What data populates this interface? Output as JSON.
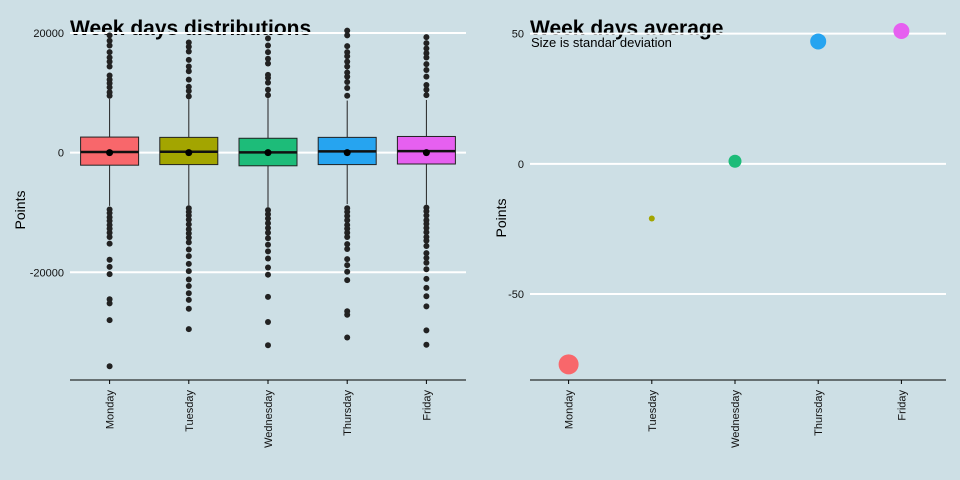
{
  "chart_data": [
    {
      "type": "boxplot",
      "title": "Week days distributions",
      "ylabel": "Points",
      "xlabel": "",
      "ylim": [
        -38000,
        22500
      ],
      "yticks": [
        20000,
        0,
        -20000
      ],
      "ytick_labels": [
        "20000",
        "0",
        "-20000"
      ],
      "grid": true,
      "legend": "none",
      "categories": [
        "Monday",
        "Tuesday",
        "Wednesday",
        "Thursday",
        "Friday"
      ],
      "colors": [
        "#f8676b",
        "#a3a500",
        "#1dbc79",
        "#26a4f0",
        "#e660f0"
      ],
      "boxes": [
        {
          "category": "Monday",
          "q1": -2100,
          "median": 100,
          "q3": 2600,
          "mean": 0,
          "whisker_low": -8900,
          "whisker_high": 9000,
          "outliers": [
            19600,
            18700,
            17900,
            16800,
            15900,
            15200,
            14400,
            12900,
            12200,
            11600,
            10900,
            10100,
            9500,
            -9500,
            -10100,
            -10800,
            -11400,
            -12100,
            -12700,
            -13400,
            -14100,
            -15200,
            -17900,
            -19100,
            -20300,
            -24500,
            -25200,
            -28000,
            -35700
          ]
        },
        {
          "category": "Tuesday",
          "q1": -2000,
          "median": 150,
          "q3": 2550,
          "mean": 0,
          "whisker_low": -8800,
          "whisker_high": 8900,
          "outliers": [
            18400,
            17700,
            16900,
            15500,
            14400,
            13600,
            12200,
            11000,
            10300,
            9400,
            -9300,
            -9900,
            -10500,
            -11200,
            -12000,
            -12800,
            -13500,
            -14200,
            -15000,
            -16200,
            -17300,
            -18600,
            -19800,
            -21200,
            -22300,
            -23500,
            -24600,
            -26100,
            -29500
          ]
        },
        {
          "category": "Wednesday",
          "q1": -2200,
          "median": 50,
          "q3": 2400,
          "mean": 0,
          "whisker_low": -9100,
          "whisker_high": 9100,
          "outliers": [
            19100,
            17900,
            16800,
            15700,
            14900,
            13000,
            12500,
            11700,
            10500,
            9600,
            -9600,
            -10300,
            -11000,
            -11800,
            -12600,
            -13400,
            -14300,
            -15400,
            -16500,
            -17700,
            -19200,
            -20400,
            -24100,
            -28300,
            -32200
          ]
        },
        {
          "category": "Thursday",
          "q1": -2000,
          "median": 200,
          "q3": 2550,
          "mean": 0,
          "whisker_low": -8600,
          "whisker_high": 8700,
          "outliers": [
            20400,
            19600,
            17800,
            16800,
            16100,
            15200,
            14400,
            13400,
            12700,
            11800,
            10800,
            9500,
            -9300,
            -9900,
            -10600,
            -11300,
            -12100,
            -12700,
            -13400,
            -14100,
            -15300,
            -16100,
            -17800,
            -18800,
            -19900,
            -21300,
            -26500,
            -27100,
            -30900
          ]
        },
        {
          "category": "Friday",
          "q1": -1900,
          "median": 250,
          "q3": 2700,
          "mean": 0,
          "whisker_low": -8700,
          "whisker_high": 8800,
          "outliers": [
            19300,
            18300,
            17400,
            16600,
            15900,
            14800,
            13800,
            12700,
            11300,
            10500,
            9600,
            -9200,
            -9800,
            -10500,
            -11300,
            -11900,
            -12600,
            -13300,
            -14100,
            -14700,
            -15600,
            -16800,
            -17600,
            -18400,
            -19500,
            -21100,
            -22600,
            -24000,
            -25700,
            -29700,
            -32100
          ]
        }
      ]
    },
    {
      "type": "scatter",
      "title": "Week days average",
      "subtitle": "Size is standar deviation",
      "ylabel": "Points",
      "xlabel": "",
      "ylim": [
        -83,
        56
      ],
      "yticks": [
        50,
        0,
        -50
      ],
      "ytick_labels": [
        "50",
        "0",
        "-50"
      ],
      "grid": true,
      "legend": "none",
      "categories": [
        "Monday",
        "Tuesday",
        "Wednesday",
        "Thursday",
        "Friday"
      ],
      "colors": [
        "#f8676b",
        "#a3a500",
        "#1dbc79",
        "#26a4f0",
        "#e660f0"
      ],
      "y": [
        -77,
        -21,
        1,
        47,
        51
      ],
      "sd": [
        10,
        3,
        6.5,
        8,
        8
      ]
    }
  ]
}
